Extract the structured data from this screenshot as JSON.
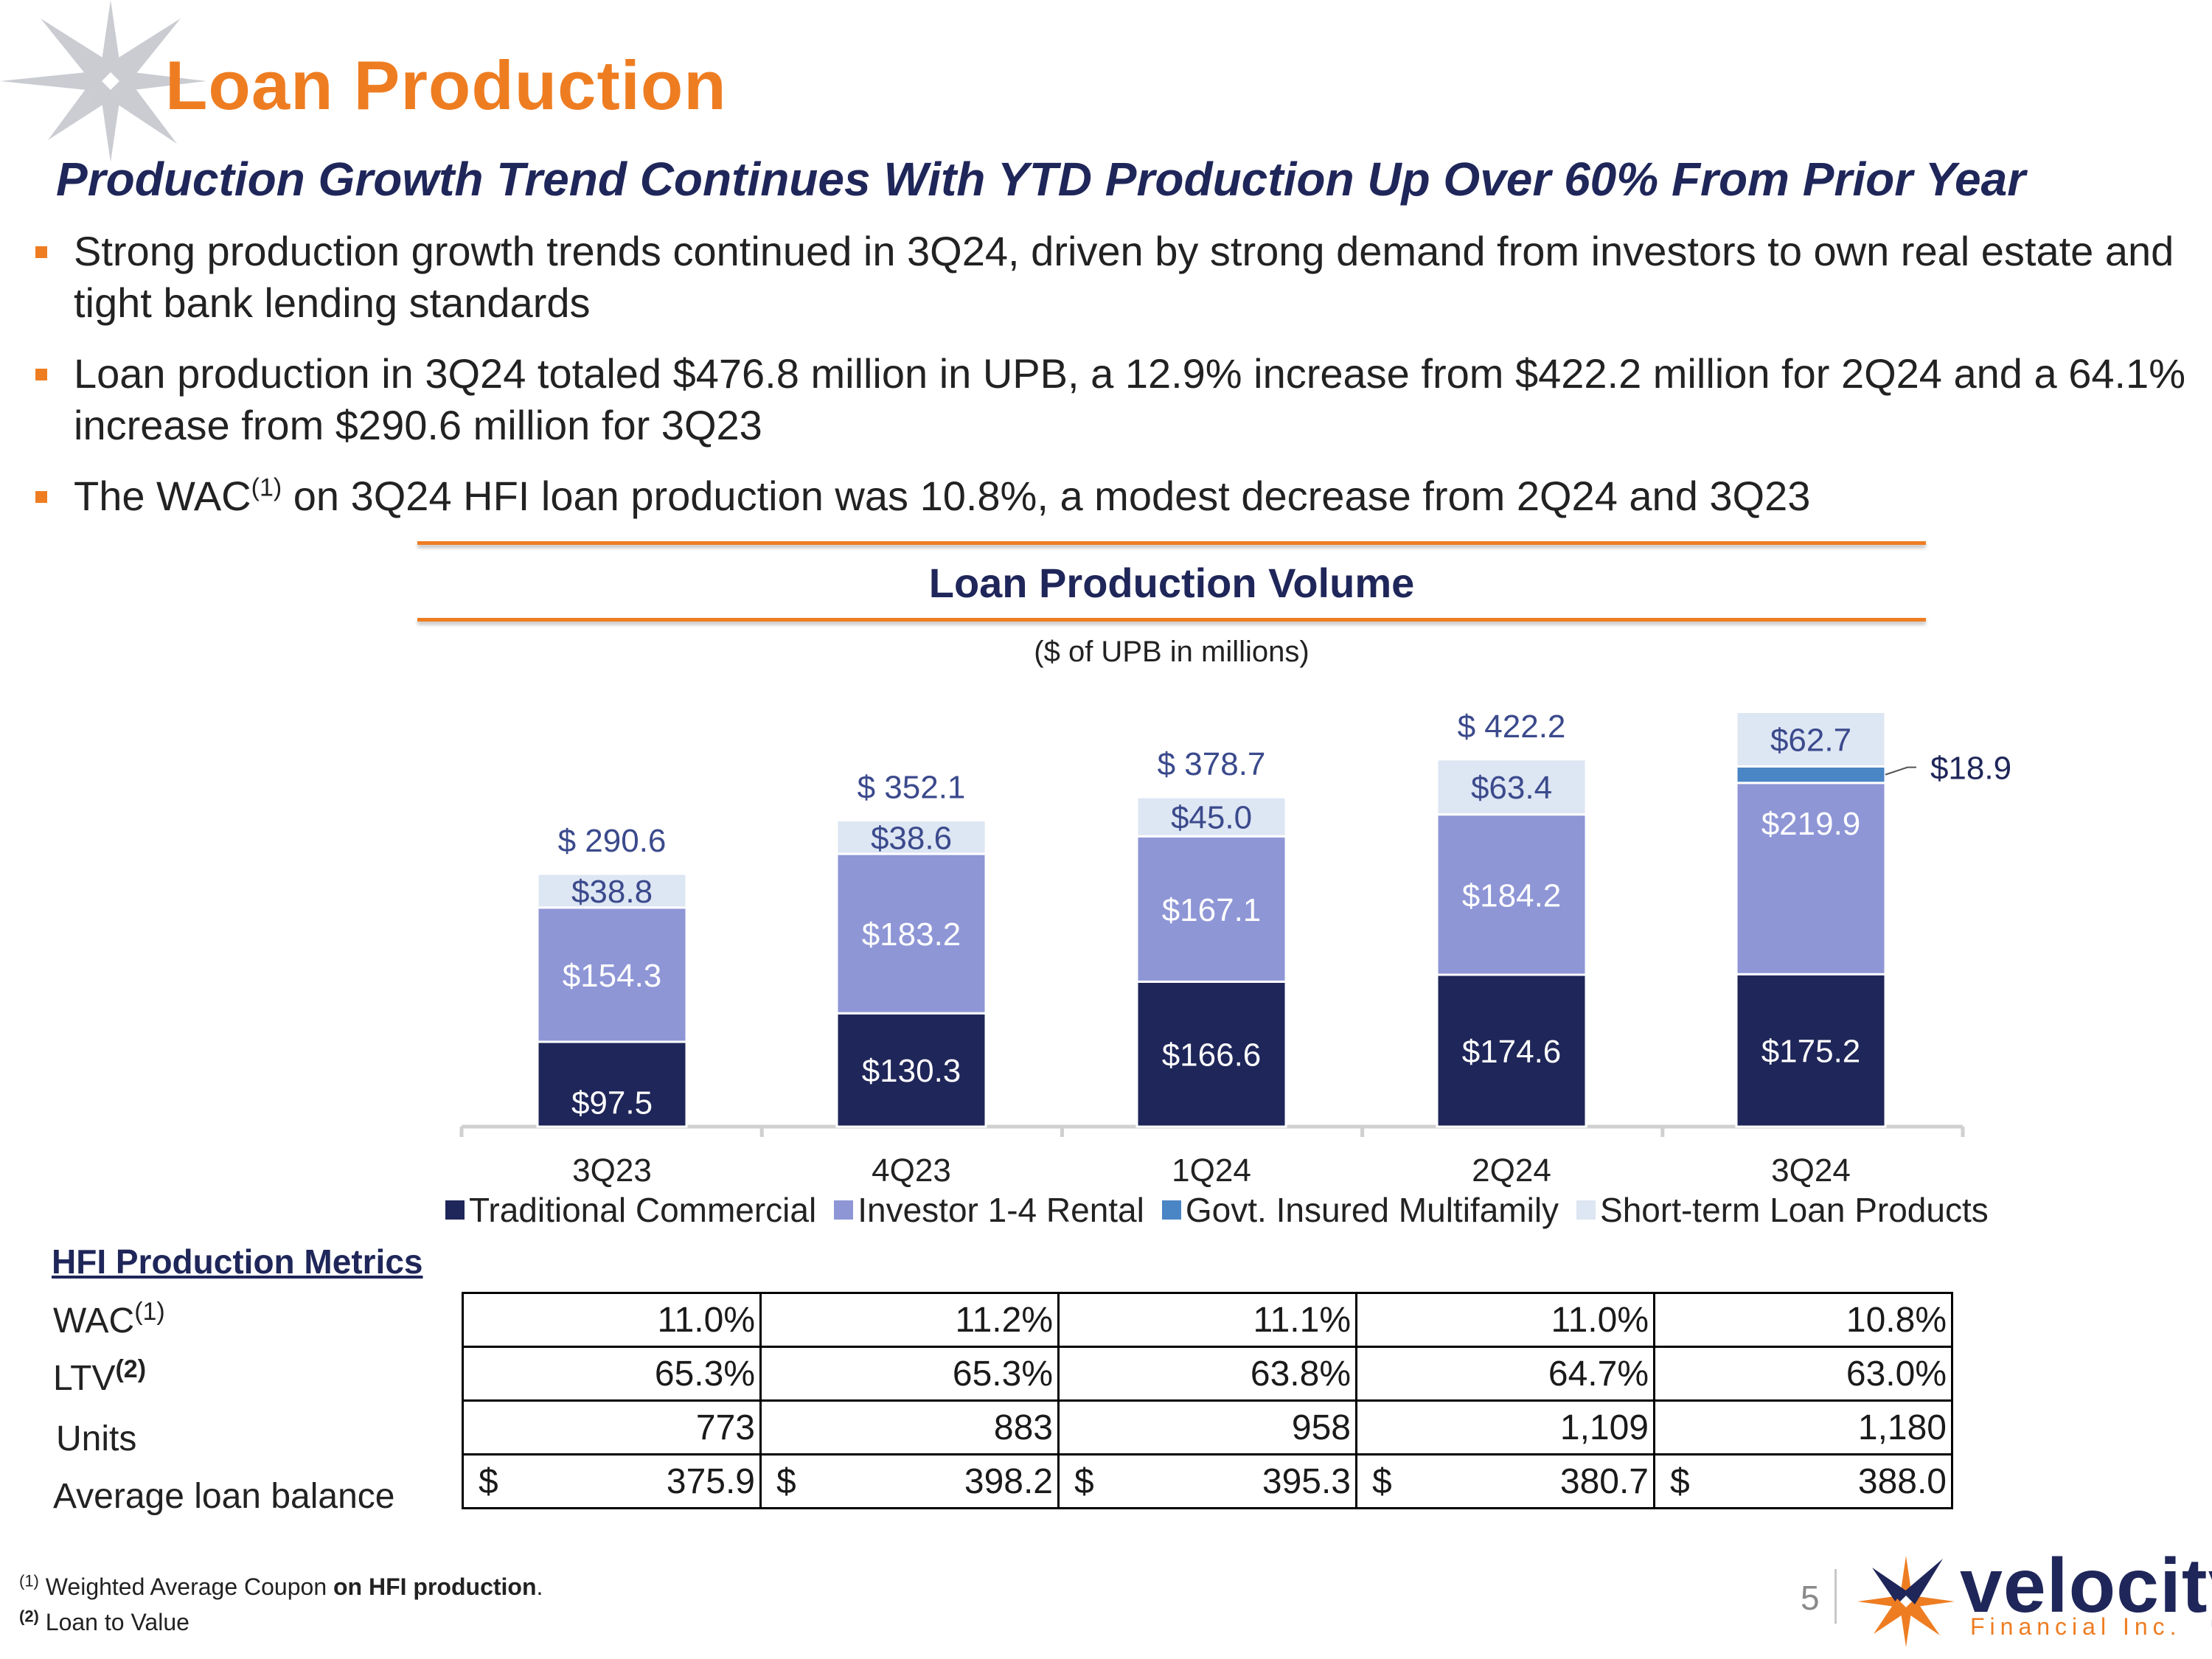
{
  "header": {
    "title": "Loan Production",
    "subtitle": "Production Growth Trend Continues With YTD Production Up Over 60% From Prior Year"
  },
  "bullets": [
    {
      "text": "Strong production growth trends continued in 3Q24, driven by strong demand from investors to own real estate and tight bank lending standards"
    },
    {
      "text": "Loan production in 3Q24 totaled $476.8 million in UPB, a 12.9% increase from $422.2 million for 2Q24 and a 64.1% increase from $290.6 million for 3Q23"
    },
    {
      "pre": "The WAC",
      "sup": "(1)",
      "post": " on 3Q24 HFI loan production was 10.8%, a modest decrease from 2Q24 and 3Q23"
    }
  ],
  "chart_data": {
    "type": "bar",
    "stacked": true,
    "title": "Loan Production Volume",
    "subtitle": "($ of UPB in millions)",
    "categories": [
      "3Q23",
      "4Q23",
      "1Q24",
      "2Q24",
      "3Q24"
    ],
    "series": [
      {
        "name": "Traditional Commercial",
        "color": "#1f2659",
        "values": [
          97.5,
          130.3,
          166.6,
          174.6,
          175.2
        ],
        "labels": [
          "$97.5",
          "$130.3",
          "$166.6",
          "$174.6",
          "$175.2"
        ]
      },
      {
        "name": "Investor 1-4 Rental",
        "color": "#8e96d6",
        "values": [
          154.3,
          183.2,
          167.1,
          184.2,
          219.9
        ],
        "labels": [
          "$154.3",
          "$183.2",
          "$167.1",
          "$184.2",
          "$219.9"
        ]
      },
      {
        "name": "Govt. Insured Multifamily",
        "color": "#4a85c5",
        "values": [
          0,
          0,
          0,
          0,
          18.9
        ],
        "labels": [
          "",
          "",
          "",
          "",
          "$18.9"
        ]
      },
      {
        "name": "Short-term Loan Products",
        "color": "#dde6f3",
        "values": [
          38.8,
          38.6,
          45.0,
          63.4,
          62.7
        ],
        "labels": [
          "$38.8",
          "$38.6",
          "$45.0",
          "$63.4",
          "$62.7"
        ]
      }
    ],
    "totals": [
      "$ 290.6",
      "$ 352.1",
      "$ 378.7",
      "$ 422.2",
      ""
    ],
    "ylim": [
      0,
      500
    ],
    "legend": "bottom"
  },
  "metrics": {
    "heading": "HFI Production Metrics",
    "rows": [
      {
        "label": "WAC",
        "sup": "(1)",
        "values": [
          "11.0%",
          "11.2%",
          "11.1%",
          "11.0%",
          "10.8%"
        ]
      },
      {
        "label": "LTV",
        "sup": "(2)",
        "values": [
          "65.3%",
          "65.3%",
          "63.8%",
          "64.7%",
          "63.0%"
        ]
      },
      {
        "label": "Units",
        "sup": "",
        "values": [
          "773",
          "883",
          "958",
          "1,109",
          "1,180"
        ]
      },
      {
        "label": "Average loan balance",
        "sup": "",
        "currency": "$",
        "values": [
          "375.9",
          "398.2",
          "395.3",
          "380.7",
          "388.0"
        ]
      }
    ]
  },
  "footnotes": {
    "f1_mark": "(1)",
    "f1_text": " Weighted Average Coupon ",
    "f1_bold": "on HFI production",
    "f1_end": ".",
    "f2_mark": "(2)",
    "f2_text": " Loan to Value"
  },
  "footer": {
    "page_number": "5",
    "brand": "velocity",
    "brand_sub": "Financial Inc."
  },
  "colors": {
    "accent": "#ee7d22",
    "navy": "#1f2659"
  }
}
